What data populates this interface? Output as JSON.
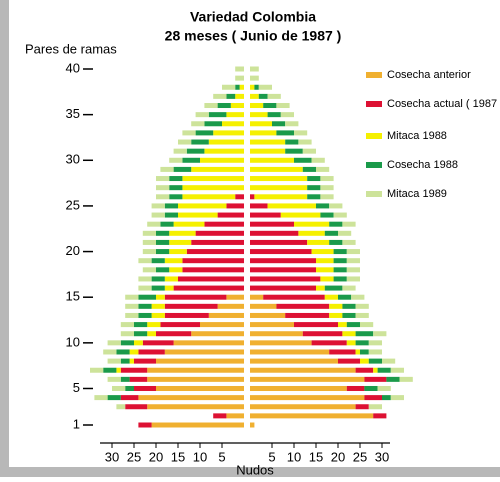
{
  "chart_data": {
    "type": "butterfly_stacked_bar",
    "title": "Variedad Colombia",
    "subtitle": "28 meses ( Junio de 1987 )",
    "y_label": "Pares de ramas",
    "x_label": "Nudos",
    "categories": [
      1,
      2,
      3,
      4,
      5,
      6,
      7,
      8,
      9,
      10,
      11,
      12,
      13,
      14,
      15,
      16,
      17,
      18,
      19,
      20,
      21,
      22,
      23,
      24,
      25,
      26,
      27,
      28,
      29,
      30,
      31,
      32,
      33,
      34,
      35,
      36,
      37,
      38,
      39,
      40
    ],
    "ylim": [
      1,
      40
    ],
    "yticks": [
      1,
      5,
      10,
      15,
      20,
      25,
      30,
      35,
      40
    ],
    "xlim": [
      0,
      30
    ],
    "xticks": [
      5,
      10,
      15,
      20,
      25,
      30
    ],
    "series": [
      {
        "name": "Cosecha anterior",
        "color": "#f0b030",
        "values": [
          21,
          4,
          22,
          24,
          20,
          22,
          22,
          20,
          18,
          16,
          12,
          10,
          8,
          6,
          4,
          0,
          0,
          0,
          0,
          0,
          0,
          0,
          0,
          0,
          0,
          0,
          0,
          0,
          0,
          0,
          0,
          0,
          0,
          0,
          0,
          0,
          0,
          0,
          0,
          0
        ],
        "values_right": [
          1,
          28,
          24,
          26,
          22,
          26,
          24,
          20,
          18,
          14,
          12,
          10,
          8,
          6,
          3,
          0,
          0,
          0,
          0,
          0,
          0,
          0,
          0,
          0,
          0,
          0,
          0,
          0,
          0,
          0,
          0,
          0,
          0,
          0,
          0,
          0,
          0,
          0,
          0,
          0
        ]
      },
      {
        "name": "Cosecha actual ( 1987 )",
        "color": "#dd1133",
        "values": [
          3,
          3,
          5,
          4,
          5,
          4,
          6,
          5,
          6,
          7,
          8,
          9,
          10,
          12,
          14,
          16,
          15,
          14,
          14,
          13,
          12,
          11,
          9,
          6,
          4,
          2,
          0,
          0,
          0,
          0,
          0,
          0,
          0,
          0,
          0,
          0,
          0,
          0,
          0,
          0
        ],
        "values_right": [
          0,
          3,
          3,
          4,
          4,
          5,
          4,
          5,
          6,
          8,
          9,
          10,
          10,
          12,
          14,
          15,
          16,
          15,
          15,
          14,
          13,
          11,
          10,
          7,
          4,
          1,
          0,
          0,
          0,
          0,
          0,
          0,
          0,
          0,
          0,
          0,
          0,
          0,
          0,
          0
        ]
      },
      {
        "name": "Mitaca 1988",
        "color": "#f5f000",
        "values": [
          0,
          0,
          0,
          0,
          0,
          0,
          1,
          1,
          2,
          2,
          2,
          3,
          3,
          3,
          2,
          2,
          3,
          3,
          4,
          4,
          5,
          6,
          7,
          9,
          11,
          12,
          14,
          14,
          12,
          10,
          9,
          8,
          7,
          5,
          4,
          3,
          2,
          1,
          0,
          0
        ],
        "values_right": [
          0,
          0,
          0,
          0,
          0,
          0,
          1,
          2,
          1,
          2,
          3,
          2,
          3,
          3,
          3,
          2,
          3,
          4,
          4,
          5,
          5,
          6,
          8,
          9,
          11,
          12,
          13,
          13,
          12,
          10,
          8,
          8,
          6,
          5,
          4,
          3,
          2,
          1,
          0,
          0
        ]
      },
      {
        "name": "Cosecha 1988",
        "color": "#1a9a4a",
        "values": [
          0,
          0,
          0,
          3,
          2,
          2,
          3,
          2,
          3,
          3,
          3,
          3,
          3,
          3,
          4,
          3,
          3,
          3,
          3,
          3,
          3,
          3,
          3,
          3,
          3,
          3,
          3,
          3,
          4,
          4,
          4,
          4,
          4,
          4,
          4,
          3,
          2,
          1,
          0,
          0
        ],
        "values_right": [
          0,
          0,
          0,
          2,
          3,
          3,
          3,
          3,
          2,
          3,
          4,
          3,
          3,
          3,
          3,
          4,
          3,
          3,
          3,
          3,
          3,
          3,
          3,
          3,
          3,
          3,
          3,
          3,
          3,
          4,
          4,
          3,
          4,
          3,
          3,
          3,
          2,
          1,
          0,
          0
        ]
      },
      {
        "name": "Mitaca 1989",
        "color": "#cde39a",
        "values": [
          0,
          0,
          2,
          3,
          3,
          3,
          3,
          3,
          3,
          3,
          3,
          3,
          3,
          3,
          3,
          3,
          3,
          3,
          3,
          3,
          3,
          3,
          3,
          3,
          3,
          3,
          3,
          3,
          3,
          3,
          3,
          3,
          3,
          3,
          3,
          3,
          3,
          3,
          2,
          2
        ],
        "values_right": [
          0,
          0,
          3,
          3,
          3,
          3,
          3,
          3,
          3,
          3,
          3,
          3,
          3,
          3,
          3,
          3,
          3,
          3,
          3,
          3,
          3,
          3,
          3,
          3,
          3,
          3,
          3,
          3,
          3,
          3,
          3,
          3,
          3,
          3,
          3,
          3,
          3,
          3,
          2,
          2
        ]
      }
    ]
  }
}
